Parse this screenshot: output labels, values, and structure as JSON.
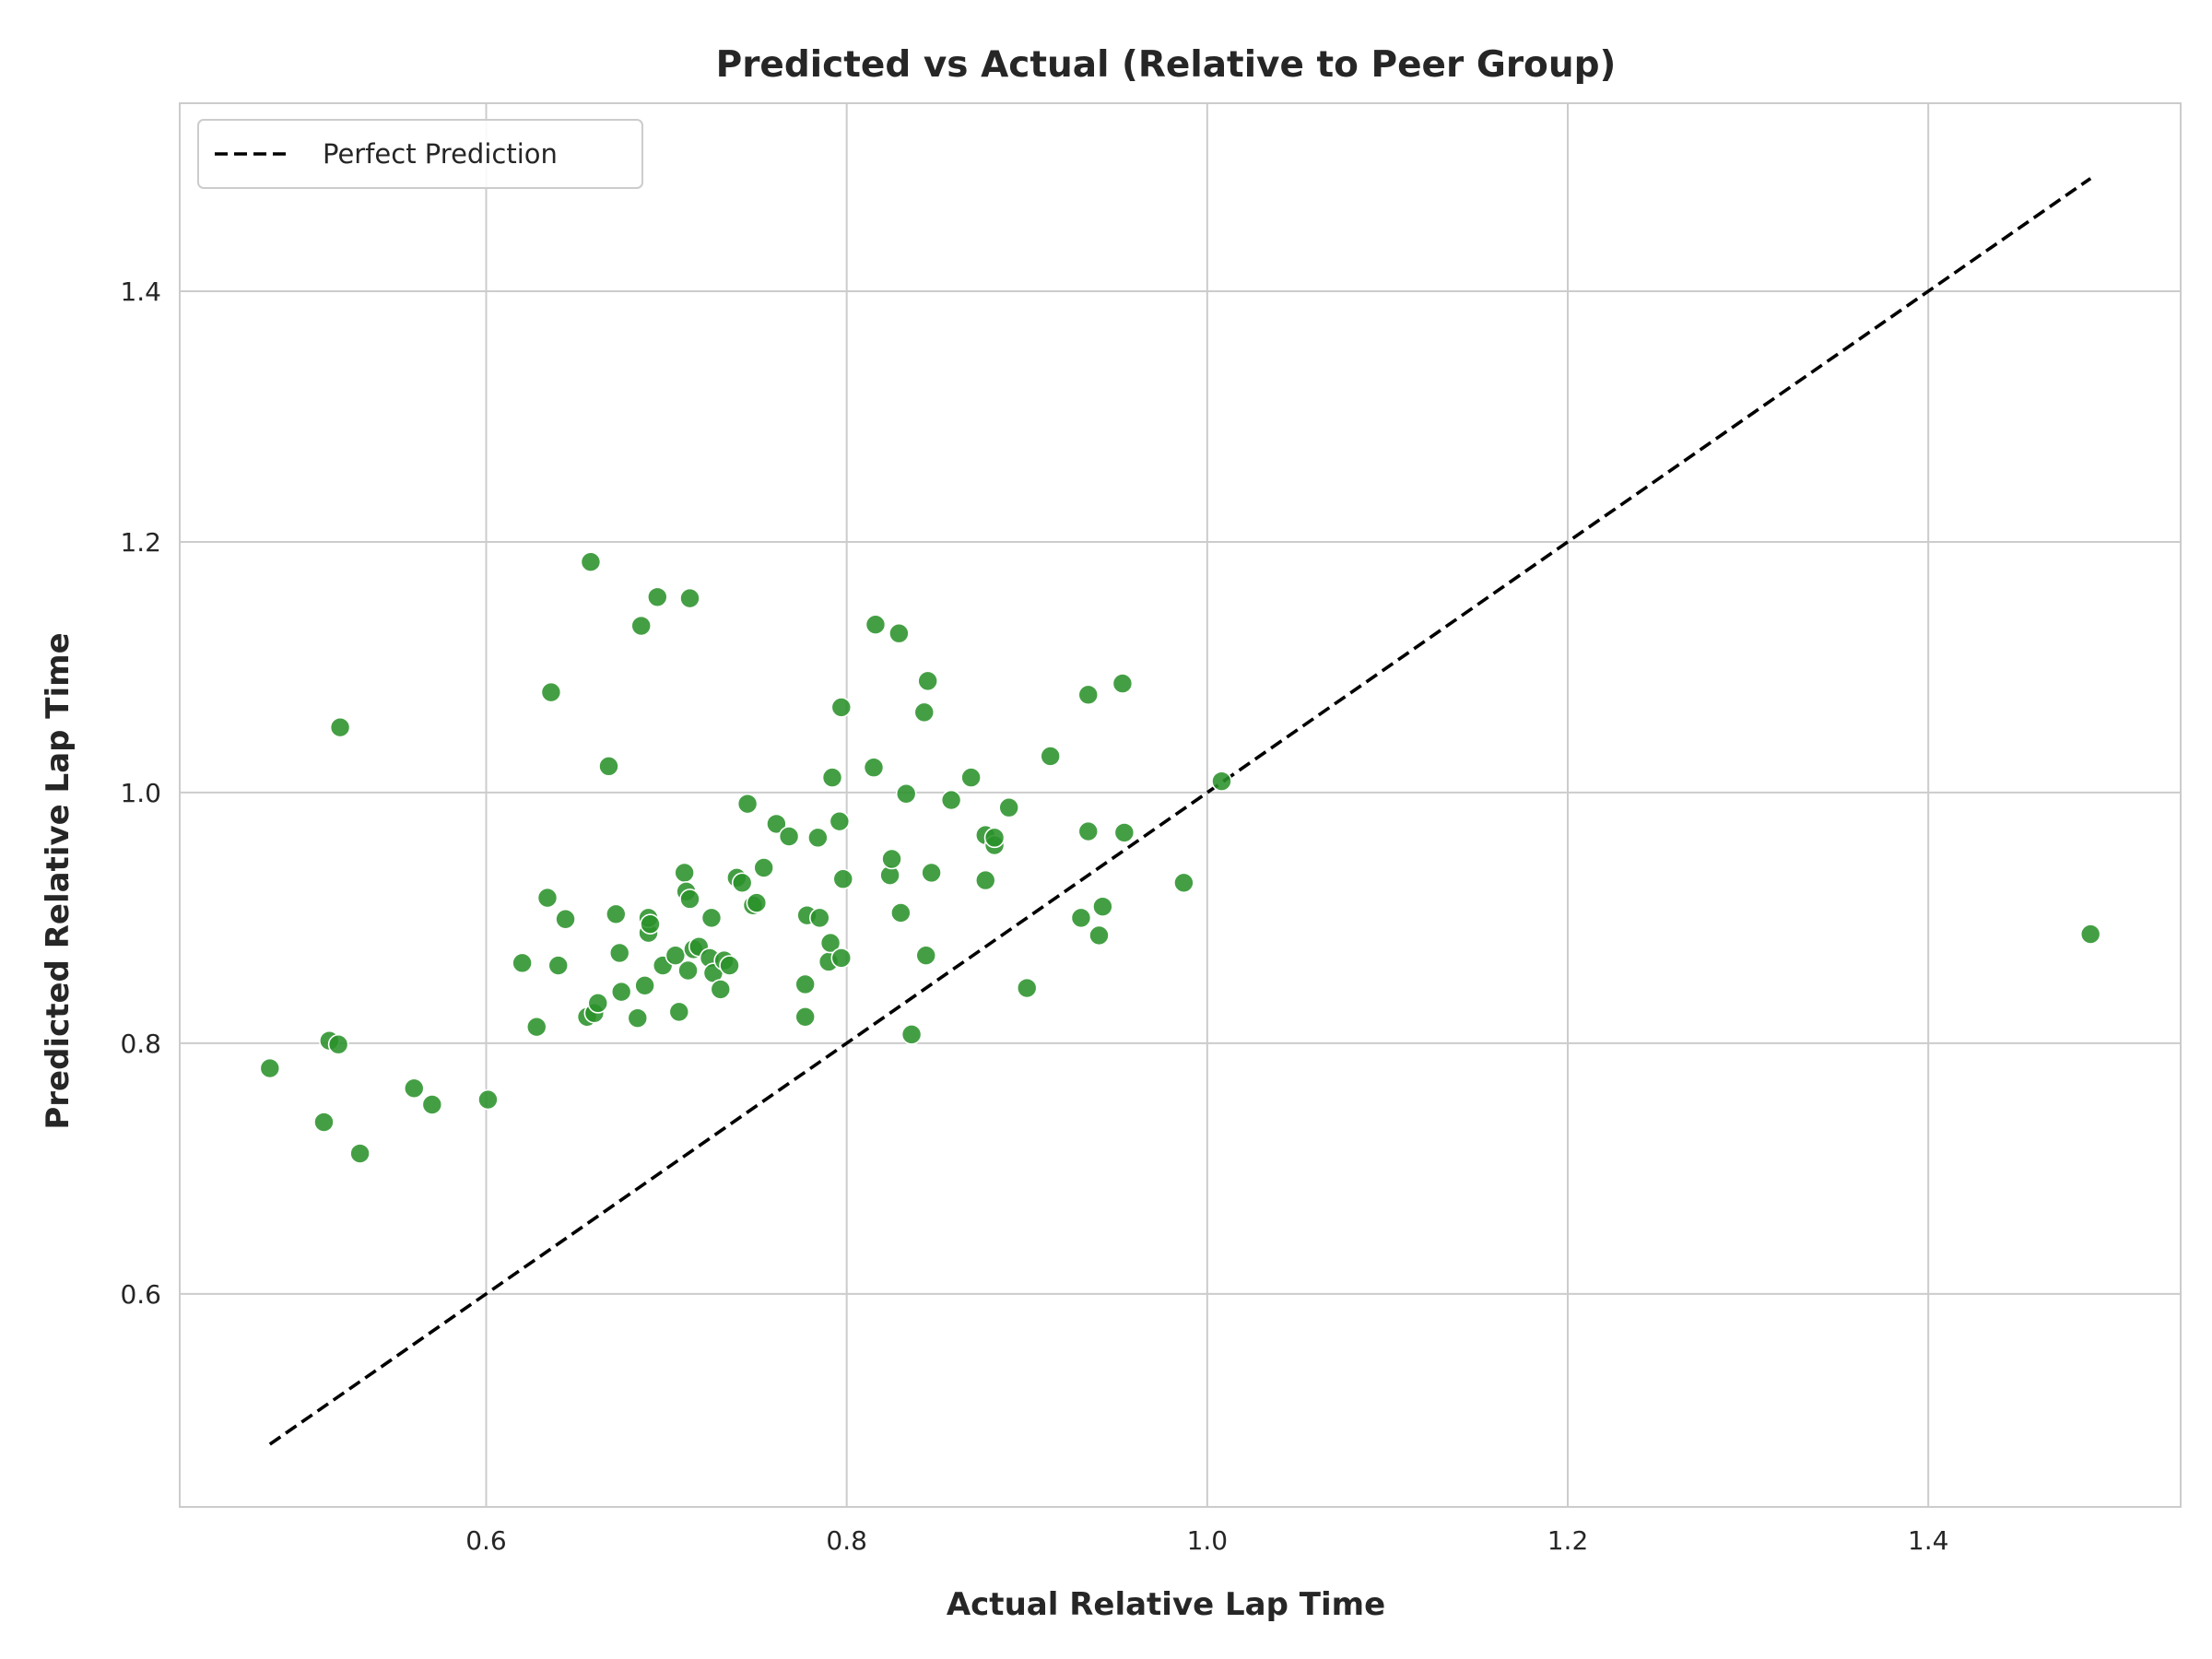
{
  "chart_data": {
    "type": "scatter",
    "title": "Predicted vs Actual (Relative to Peer Group)",
    "xlabel": "Actual Relative Lap Time",
    "ylabel": "Predicted Relative Lap Time",
    "xlim": [
      0.43,
      1.54
    ],
    "ylim": [
      0.43,
      1.55
    ],
    "xticks": [
      0.6,
      0.8,
      1.0,
      1.2,
      1.4
    ],
    "yticks": [
      0.6,
      0.8,
      1.0,
      1.2,
      1.4
    ],
    "xtick_labels": [
      "0.6",
      "0.8",
      "1.0",
      "1.2",
      "1.4"
    ],
    "ytick_labels": [
      "0.6",
      "0.8",
      "1.0",
      "1.2",
      "1.4"
    ],
    "grid": true,
    "legend": {
      "position": "top-left",
      "entries": [
        "Perfect Prediction"
      ]
    },
    "reference_line": {
      "name": "Perfect Prediction",
      "style": "dashed",
      "color": "#000000",
      "x": [
        0.48,
        1.49
      ],
      "y": [
        0.48,
        1.49
      ]
    },
    "point_color": "#2a922a",
    "points": [
      {
        "x": 0.48,
        "y": 0.78
      },
      {
        "x": 0.51,
        "y": 0.737
      },
      {
        "x": 0.513,
        "y": 0.802
      },
      {
        "x": 0.518,
        "y": 0.799
      },
      {
        "x": 0.519,
        "y": 1.052
      },
      {
        "x": 0.53,
        "y": 0.712
      },
      {
        "x": 0.56,
        "y": 0.764
      },
      {
        "x": 0.57,
        "y": 0.751
      },
      {
        "x": 0.601,
        "y": 0.755
      },
      {
        "x": 0.62,
        "y": 0.864
      },
      {
        "x": 0.628,
        "y": 0.813
      },
      {
        "x": 0.634,
        "y": 0.916
      },
      {
        "x": 0.636,
        "y": 1.08
      },
      {
        "x": 0.64,
        "y": 0.862
      },
      {
        "x": 0.644,
        "y": 0.899
      },
      {
        "x": 0.656,
        "y": 0.821
      },
      {
        "x": 0.658,
        "y": 1.184
      },
      {
        "x": 0.66,
        "y": 0.824
      },
      {
        "x": 0.662,
        "y": 0.832
      },
      {
        "x": 0.668,
        "y": 1.021
      },
      {
        "x": 0.672,
        "y": 0.903
      },
      {
        "x": 0.674,
        "y": 0.872
      },
      {
        "x": 0.675,
        "y": 0.841
      },
      {
        "x": 0.684,
        "y": 0.82
      },
      {
        "x": 0.686,
        "y": 1.133
      },
      {
        "x": 0.688,
        "y": 0.846
      },
      {
        "x": 0.69,
        "y": 0.888
      },
      {
        "x": 0.69,
        "y": 0.9
      },
      {
        "x": 0.691,
        "y": 0.895
      },
      {
        "x": 0.695,
        "y": 1.156
      },
      {
        "x": 0.698,
        "y": 0.862
      },
      {
        "x": 0.705,
        "y": 0.87
      },
      {
        "x": 0.707,
        "y": 0.825
      },
      {
        "x": 0.71,
        "y": 0.936
      },
      {
        "x": 0.711,
        "y": 0.921
      },
      {
        "x": 0.712,
        "y": 0.858
      },
      {
        "x": 0.713,
        "y": 0.915
      },
      {
        "x": 0.713,
        "y": 1.155
      },
      {
        "x": 0.715,
        "y": 0.875
      },
      {
        "x": 0.718,
        "y": 0.877
      },
      {
        "x": 0.724,
        "y": 0.868
      },
      {
        "x": 0.725,
        "y": 0.9
      },
      {
        "x": 0.726,
        "y": 0.856
      },
      {
        "x": 0.73,
        "y": 0.843
      },
      {
        "x": 0.732,
        "y": 0.866
      },
      {
        "x": 0.735,
        "y": 0.862
      },
      {
        "x": 0.739,
        "y": 0.932
      },
      {
        "x": 0.742,
        "y": 0.928
      },
      {
        "x": 0.745,
        "y": 0.991
      },
      {
        "x": 0.748,
        "y": 0.91
      },
      {
        "x": 0.75,
        "y": 0.912
      },
      {
        "x": 0.754,
        "y": 0.94
      },
      {
        "x": 0.761,
        "y": 0.975
      },
      {
        "x": 0.768,
        "y": 0.965
      },
      {
        "x": 0.777,
        "y": 0.847
      },
      {
        "x": 0.777,
        "y": 0.821
      },
      {
        "x": 0.778,
        "y": 0.902
      },
      {
        "x": 0.784,
        "y": 0.964
      },
      {
        "x": 0.785,
        "y": 0.9
      },
      {
        "x": 0.79,
        "y": 0.865
      },
      {
        "x": 0.791,
        "y": 0.88
      },
      {
        "x": 0.792,
        "y": 1.012
      },
      {
        "x": 0.796,
        "y": 0.977
      },
      {
        "x": 0.797,
        "y": 1.068
      },
      {
        "x": 0.797,
        "y": 0.868
      },
      {
        "x": 0.798,
        "y": 0.931
      },
      {
        "x": 0.815,
        "y": 1.02
      },
      {
        "x": 0.816,
        "y": 1.134
      },
      {
        "x": 0.824,
        "y": 0.934
      },
      {
        "x": 0.825,
        "y": 0.947
      },
      {
        "x": 0.829,
        "y": 1.127
      },
      {
        "x": 0.83,
        "y": 0.904
      },
      {
        "x": 0.833,
        "y": 0.999
      },
      {
        "x": 0.836,
        "y": 0.807
      },
      {
        "x": 0.843,
        "y": 1.064
      },
      {
        "x": 0.844,
        "y": 0.87
      },
      {
        "x": 0.845,
        "y": 1.089
      },
      {
        "x": 0.847,
        "y": 0.936
      },
      {
        "x": 0.858,
        "y": 0.994
      },
      {
        "x": 0.869,
        "y": 1.012
      },
      {
        "x": 0.877,
        "y": 0.93
      },
      {
        "x": 0.877,
        "y": 0.966
      },
      {
        "x": 0.882,
        "y": 0.958
      },
      {
        "x": 0.882,
        "y": 0.964
      },
      {
        "x": 0.89,
        "y": 0.988
      },
      {
        "x": 0.9,
        "y": 0.844
      },
      {
        "x": 0.913,
        "y": 1.029
      },
      {
        "x": 0.93,
        "y": 0.9
      },
      {
        "x": 0.934,
        "y": 0.969
      },
      {
        "x": 0.934,
        "y": 1.078
      },
      {
        "x": 0.94,
        "y": 0.886
      },
      {
        "x": 0.942,
        "y": 0.909
      },
      {
        "x": 0.953,
        "y": 1.087
      },
      {
        "x": 0.954,
        "y": 0.968
      },
      {
        "x": 0.987,
        "y": 0.928
      },
      {
        "x": 1.008,
        "y": 1.009
      },
      {
        "x": 1.49,
        "y": 0.887
      }
    ]
  }
}
